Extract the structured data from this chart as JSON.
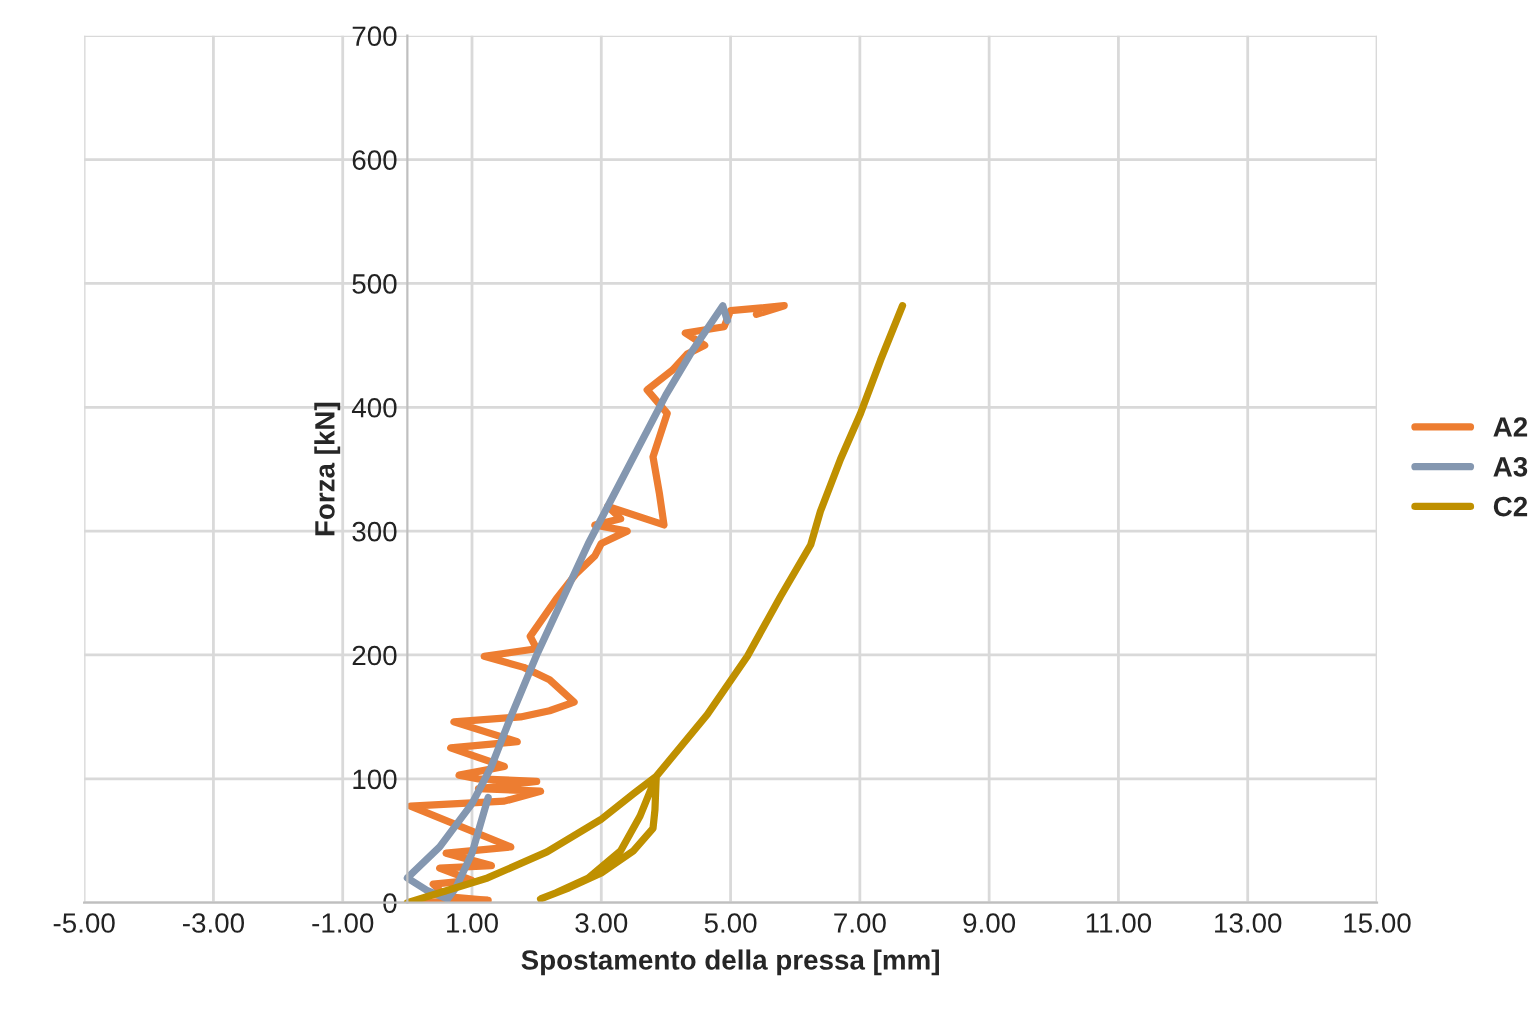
{
  "chart_data": {
    "type": "line",
    "xlabel": "Spostamento della pressa [mm]",
    "ylabel": "Forza [kN]",
    "xlim": [
      -5,
      15
    ],
    "ylim": [
      0,
      700
    ],
    "xticks": [
      {
        "value": -5,
        "label": "-5.00"
      },
      {
        "value": -3,
        "label": "-3.00"
      },
      {
        "value": -1,
        "label": "-1.00"
      },
      {
        "value": 1,
        "label": "1.00"
      },
      {
        "value": 3,
        "label": "3.00"
      },
      {
        "value": 5,
        "label": "5.00"
      },
      {
        "value": 7,
        "label": "7.00"
      },
      {
        "value": 9,
        "label": "9.00"
      },
      {
        "value": 11,
        "label": "11.00"
      },
      {
        "value": 13,
        "label": "13.00"
      },
      {
        "value": 15,
        "label": "15.00"
      }
    ],
    "yticks": [
      0,
      100,
      200,
      300,
      400,
      500,
      600,
      700
    ],
    "grid": true,
    "legend": "right",
    "marker": "none",
    "line_style": "solid",
    "series": [
      {
        "name": "A2",
        "color": "#ed7d31",
        "x": [
          0.1,
          1.25,
          0.6,
          0.4,
          1.0,
          0.5,
          1.3,
          0.6,
          1.6,
          0.05,
          1.5,
          2.06,
          1.1,
          2.0,
          1.1,
          0.8,
          1.5,
          0.67,
          1.7,
          0.72,
          1.75,
          2.2,
          2.58,
          2.2,
          1.8,
          1.19,
          2.0,
          1.9,
          2.1,
          2.3,
          2.6,
          2.9,
          3.0,
          3.4,
          2.9,
          3.3,
          3.1,
          3.97,
          3.9,
          3.8,
          4.02,
          3.71,
          4.1,
          4.33,
          4.6,
          4.3,
          4.9,
          5.0,
          5.83,
          5.4
        ],
        "values": [
          0,
          2,
          5,
          15,
          18,
          28,
          30,
          40,
          45,
          78,
          82,
          90,
          92,
          98,
          100,
          103,
          110,
          125,
          130,
          146,
          150,
          155,
          162,
          180,
          190,
          199,
          205,
          215,
          230,
          245,
          265,
          280,
          290,
          300,
          305,
          310,
          320,
          305,
          330,
          360,
          395,
          414,
          430,
          443,
          450,
          460,
          465,
          478,
          482,
          475
        ]
      },
      {
        "name": "A3",
        "color": "#8497b0",
        "x": [
          1.25,
          1.0,
          0.75,
          0.62,
          0.3,
          0.0,
          0.5,
          1.0,
          1.3,
          1.6,
          2.0,
          2.4,
          2.8,
          3.2,
          3.6,
          4.0,
          4.4,
          4.88,
          4.95
        ],
        "values": [
          85,
          40,
          12,
          3,
          10,
          20,
          45,
          80,
          110,
          150,
          200,
          245,
          290,
          330,
          370,
          410,
          445,
          482,
          470
        ]
      },
      {
        "name": "C2",
        "color": "#bf9000",
        "x": [
          0,
          1.24,
          2.16,
          2.99,
          3.5,
          3.85,
          3.83,
          3.8,
          3.5,
          3.0,
          2.5,
          2.06,
          2.3,
          2.8,
          3.3,
          3.6,
          3.85,
          4.64,
          5.26,
          5.77,
          6.24,
          6.39,
          6.7,
          7.01,
          7.32,
          7.66
        ],
        "values": [
          0,
          20,
          41,
          67,
          88,
          102,
          75,
          60,
          42,
          24,
          12,
          3,
          8,
          20,
          42,
          70,
          102,
          152,
          199,
          247,
          289,
          316,
          358,
          395,
          438,
          482
        ]
      }
    ]
  }
}
